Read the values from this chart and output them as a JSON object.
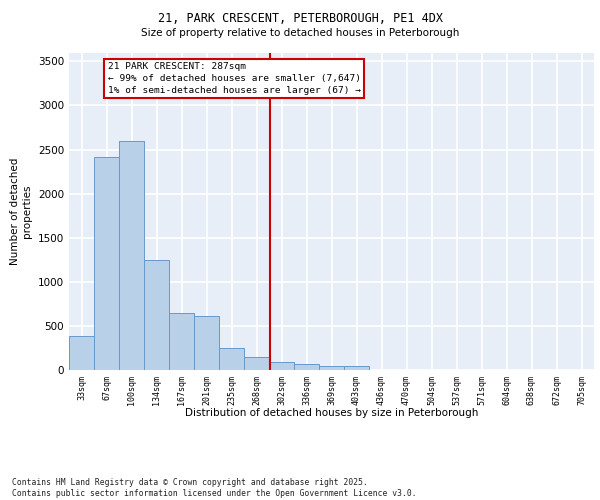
{
  "title1": "21, PARK CRESCENT, PETERBOROUGH, PE1 4DX",
  "title2": "Size of property relative to detached houses in Peterborough",
  "xlabel": "Distribution of detached houses by size in Peterborough",
  "ylabel": "Number of detached\nproperties",
  "categories": [
    "33sqm",
    "67sqm",
    "100sqm",
    "134sqm",
    "167sqm",
    "201sqm",
    "235sqm",
    "268sqm",
    "302sqm",
    "336sqm",
    "369sqm",
    "403sqm",
    "436sqm",
    "470sqm",
    "504sqm",
    "537sqm",
    "571sqm",
    "604sqm",
    "638sqm",
    "672sqm",
    "705sqm"
  ],
  "values": [
    390,
    2410,
    2600,
    1250,
    645,
    615,
    250,
    145,
    90,
    65,
    45,
    45,
    0,
    0,
    0,
    0,
    0,
    0,
    0,
    0,
    0
  ],
  "bar_color": "#b8d0e8",
  "bar_edge_color": "#6699cc",
  "bg_color": "#e8eef8",
  "grid_color": "#ffffff",
  "vline_color": "#cc0000",
  "annotation_text": "21 PARK CRESCENT: 287sqm\n← 99% of detached houses are smaller (7,647)\n1% of semi-detached houses are larger (67) →",
  "annotation_box_color": "#cc0000",
  "ylim": [
    0,
    3600
  ],
  "yticks": [
    0,
    500,
    1000,
    1500,
    2000,
    2500,
    3000,
    3500
  ],
  "footer": "Contains HM Land Registry data © Crown copyright and database right 2025.\nContains public sector information licensed under the Open Government Licence v3.0."
}
